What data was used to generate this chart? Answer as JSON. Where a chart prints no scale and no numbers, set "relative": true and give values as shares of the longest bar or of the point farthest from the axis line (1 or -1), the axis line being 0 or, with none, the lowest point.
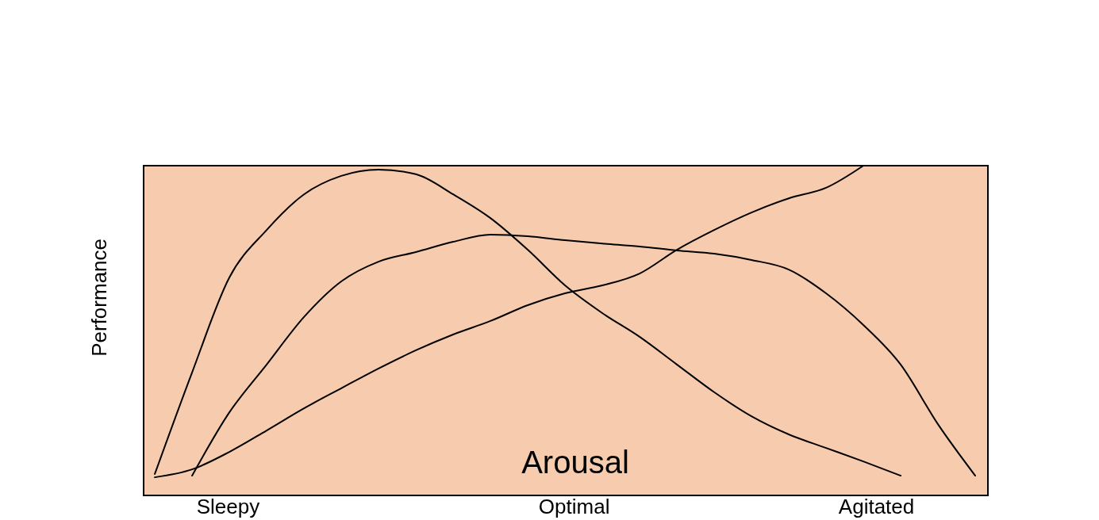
{
  "chart_data": {
    "type": "line",
    "relative": true,
    "xlabel": "Arousal",
    "ylabel": "Performance",
    "annotations": [
      "Sleepy",
      "Optimal",
      "Agitated"
    ],
    "categories": [
      null,
      null,
      null,
      null,
      null,
      null,
      null,
      null,
      null,
      null,
      null,
      null,
      null,
      null,
      null,
      null,
      null,
      null,
      null,
      null,
      null,
      null,
      null
    ],
    "series": [
      {
        "color": "#000000",
        "values": [
          0.065,
          0.373,
          0.661,
          0.805,
          0.913,
          0.969,
          0.988,
          0.974,
          0.913,
          0.841,
          0.745,
          0.637,
          0.553,
          0.481,
          0.397,
          0.313,
          0.24,
          0.185,
          0.144,
          0.103,
          0.06,
          null,
          null
        ]
      },
      {
        "color": "#000000",
        "values": [
          null,
          0.06,
          0.252,
          0.397,
          0.541,
          0.649,
          0.709,
          0.738,
          0.769,
          0.791,
          0.786,
          0.774,
          0.764,
          0.755,
          0.743,
          0.733,
          0.714,
          0.685,
          0.613,
          0.517,
          0.397,
          0.216,
          0.06
        ]
      },
      {
        "color": "#000000",
        "values": [
          0.055,
          0.079,
          0.132,
          0.197,
          0.264,
          0.325,
          0.385,
          0.44,
          0.488,
          0.529,
          0.577,
          0.613,
          0.637,
          0.673,
          0.745,
          0.805,
          0.858,
          0.901,
          0.933,
          1.0,
          null,
          null,
          null
        ]
      }
    ],
    "legend": false
  }
}
